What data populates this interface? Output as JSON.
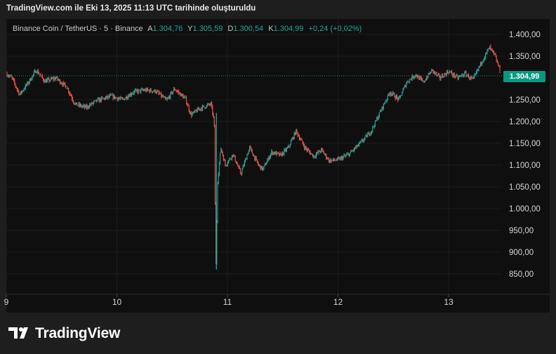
{
  "header": {
    "title": "TradingView.com ile Eki 13, 2025 11:13 UTC tarihinde oluşturuldu"
  },
  "legend": {
    "symbol": "Binance Coin / TetherUS · 5 · Binance",
    "open_label": "A",
    "open": "1.304,76",
    "high_label": "Y",
    "high": "1.305,59",
    "low_label": "D",
    "low": "1.300,54",
    "close_label": "K",
    "close": "1.304,99",
    "change": "+0,24 (+0,02%)"
  },
  "last_price_tag": "1.304,99",
  "footer": {
    "brand": "TradingView",
    "logo_icon": "tradingview-logo-icon"
  },
  "colors": {
    "up": "#26a69a",
    "down": "#ef5350",
    "background": "#0f0f0f",
    "tag": "#089981"
  },
  "chart_data": {
    "type": "candlestick",
    "series_name": "Binance Coin / TetherUS",
    "interval": "5",
    "exchange": "Binance",
    "y_ticks": [
      {
        "value": 1400,
        "label": "1.400,00"
      },
      {
        "value": 1350,
        "label": "1.350,00"
      },
      {
        "value": 1250,
        "label": "1.250,00"
      },
      {
        "value": 1200,
        "label": "1.200,00"
      },
      {
        "value": 1150,
        "label": "1.150,00"
      },
      {
        "value": 1100,
        "label": "1.100,00"
      },
      {
        "value": 1050,
        "label": "1.050,00"
      },
      {
        "value": 1000,
        "label": "1.000,00"
      },
      {
        "value": 950,
        "label": "950,00"
      },
      {
        "value": 900,
        "label": "900,00"
      },
      {
        "value": 850,
        "label": "850,00"
      }
    ],
    "ylim": [
      830,
      1420
    ],
    "x_ticks": [
      {
        "value": 9,
        "label": "9"
      },
      {
        "value": 10,
        "label": "10"
      },
      {
        "value": 11,
        "label": "11"
      },
      {
        "value": 12,
        "label": "12"
      },
      {
        "value": 13,
        "label": "13"
      }
    ],
    "xlim": [
      9.0,
      13.5
    ],
    "last_price": 1304.99,
    "price_path": [
      [
        9.0,
        1310
      ],
      [
        9.05,
        1300
      ],
      [
        9.12,
        1262
      ],
      [
        9.2,
        1290
      ],
      [
        9.27,
        1318
      ],
      [
        9.35,
        1292
      ],
      [
        9.45,
        1300
      ],
      [
        9.55,
        1278
      ],
      [
        9.62,
        1240
      ],
      [
        9.72,
        1232
      ],
      [
        9.82,
        1248
      ],
      [
        9.95,
        1258
      ],
      [
        10.05,
        1250
      ],
      [
        10.15,
        1268
      ],
      [
        10.25,
        1272
      ],
      [
        10.35,
        1270
      ],
      [
        10.45,
        1248
      ],
      [
        10.52,
        1275
      ],
      [
        10.62,
        1252
      ],
      [
        10.67,
        1215
      ],
      [
        10.75,
        1230
      ],
      [
        10.85,
        1240
      ],
      [
        10.88,
        1200
      ],
      [
        10.895,
        860
      ],
      [
        10.91,
        1060
      ],
      [
        10.94,
        1140
      ],
      [
        10.98,
        1100
      ],
      [
        11.05,
        1125
      ],
      [
        11.12,
        1080
      ],
      [
        11.2,
        1140
      ],
      [
        11.28,
        1100
      ],
      [
        11.32,
        1090
      ],
      [
        11.4,
        1130
      ],
      [
        11.48,
        1122
      ],
      [
        11.55,
        1140
      ],
      [
        11.62,
        1178
      ],
      [
        11.7,
        1140
      ],
      [
        11.78,
        1120
      ],
      [
        11.85,
        1135
      ],
      [
        11.92,
        1110
      ],
      [
        12.0,
        1112
      ],
      [
        12.1,
        1125
      ],
      [
        12.2,
        1150
      ],
      [
        12.3,
        1178
      ],
      [
        12.4,
        1232
      ],
      [
        12.47,
        1268
      ],
      [
        12.55,
        1250
      ],
      [
        12.62,
        1290
      ],
      [
        12.7,
        1308
      ],
      [
        12.77,
        1290
      ],
      [
        12.85,
        1318
      ],
      [
        12.92,
        1300
      ],
      [
        13.0,
        1315
      ],
      [
        13.08,
        1300
      ],
      [
        13.15,
        1310
      ],
      [
        13.22,
        1295
      ],
      [
        13.3,
        1338
      ],
      [
        13.37,
        1370
      ],
      [
        13.42,
        1350
      ],
      [
        13.48,
        1305
      ]
    ]
  }
}
